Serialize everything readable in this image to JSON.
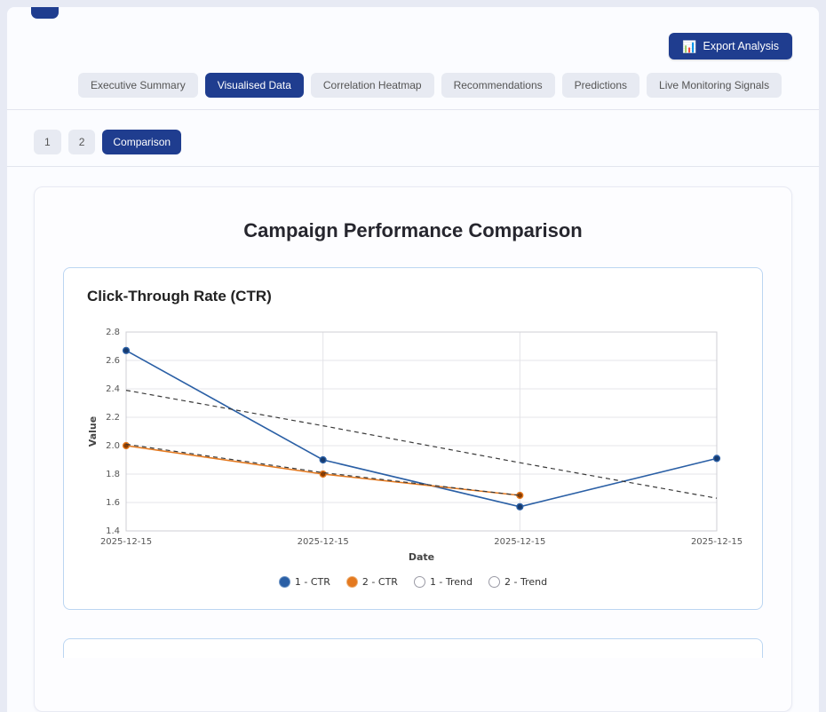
{
  "page": {
    "accent": "#1f3d8f",
    "background": "#e7eaf4"
  },
  "header": {
    "export_button": {
      "icon": "📊",
      "label": "Export Analysis"
    }
  },
  "tabs": {
    "items": [
      {
        "label": "Executive Summary",
        "active": false
      },
      {
        "label": "Visualised Data",
        "active": true
      },
      {
        "label": "Correlation Heatmap",
        "active": false
      },
      {
        "label": "Recommendations",
        "active": false
      },
      {
        "label": "Predictions",
        "active": false
      },
      {
        "label": "Live Monitoring Signals",
        "active": false
      }
    ]
  },
  "subtabs": {
    "items": [
      {
        "label": "1",
        "active": false
      },
      {
        "label": "2",
        "active": false
      },
      {
        "label": "Comparison",
        "active": true
      }
    ]
  },
  "main": {
    "title": "Campaign Performance Comparison"
  },
  "chart_data": {
    "type": "line",
    "title": "Click-Through Rate (CTR)",
    "xlabel": "Date",
    "ylabel": "Value",
    "ylim": [
      1.4,
      2.8
    ],
    "ytick_step": 0.2,
    "grid": true,
    "legend_position": "bottom",
    "x": [
      "2025-12-15",
      "2025-12-15",
      "2025-12-15",
      "2025-12-15"
    ],
    "series": [
      {
        "name": "1 - CTR",
        "color": "#2a5fa5",
        "marker_color": "#173a6d",
        "style": "solid",
        "markers": true,
        "values": [
          2.67,
          1.9,
          1.57,
          1.91
        ]
      },
      {
        "name": "2 - CTR",
        "color": "#e4791f",
        "marker_color": "#8a3c00",
        "style": "solid",
        "markers": true,
        "values": [
          2.0,
          1.8,
          1.65,
          null
        ]
      },
      {
        "name": "1 - Trend",
        "color": "#3a3a3a",
        "style": "dashed",
        "markers": false,
        "values": [
          2.39,
          2.14,
          1.88,
          1.63
        ]
      },
      {
        "name": "2 - Trend",
        "color": "#3a3a3a",
        "style": "dashed",
        "markers": false,
        "values": [
          2.01,
          1.81,
          1.65,
          null
        ]
      }
    ],
    "legend": [
      {
        "label": "1 - CTR",
        "fill": "#2a5fa5",
        "stroke": "#6b93c4"
      },
      {
        "label": "2 - CTR",
        "fill": "#e4791f",
        "stroke": "#ecae72"
      },
      {
        "label": "1 - Trend",
        "fill": "#ffffff",
        "stroke": "#9a9aa5"
      },
      {
        "label": "2 - Trend",
        "fill": "#ffffff",
        "stroke": "#9a9aa5"
      }
    ]
  }
}
